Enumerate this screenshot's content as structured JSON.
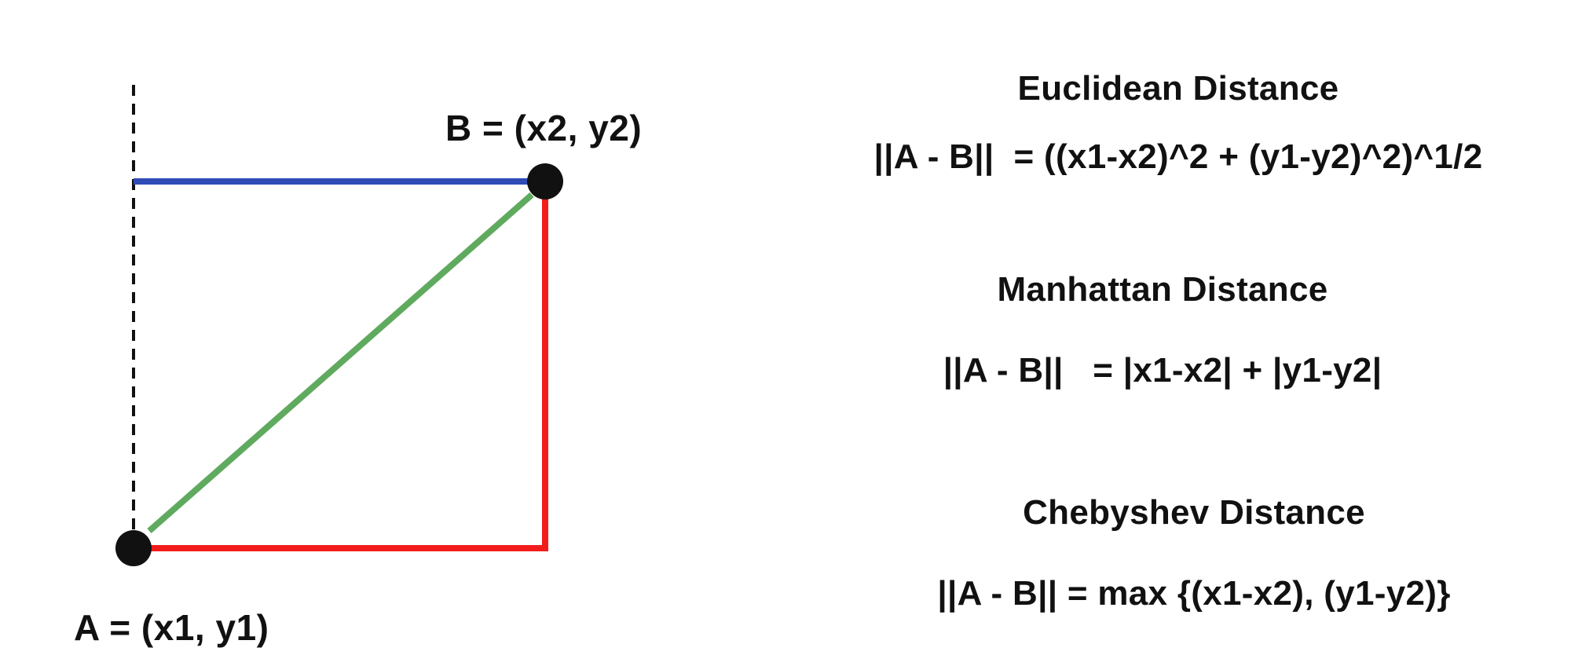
{
  "points": {
    "a_label": "A = (x1, y1)",
    "b_label": "B = (x2, y2)"
  },
  "lines": {
    "blue": "#2f4bb5",
    "green": "#5faa5f",
    "red": "#f21c1c",
    "dashed": "#111111",
    "point": "#111111"
  },
  "formulas": {
    "euclidean": {
      "title": "Euclidean Distance",
      "expression": "||A - B||  = ((x1-x2)^2 + (y1-y2)^2)^1/2"
    },
    "manhattan": {
      "title": "Manhattan Distance",
      "expression": "||A - B||   = |x1-x2| + |y1-y2|"
    },
    "chebyshev": {
      "title": "Chebyshev Distance",
      "expression": "||A - B|| = max {(x1-x2), (y1-y2)}"
    }
  }
}
